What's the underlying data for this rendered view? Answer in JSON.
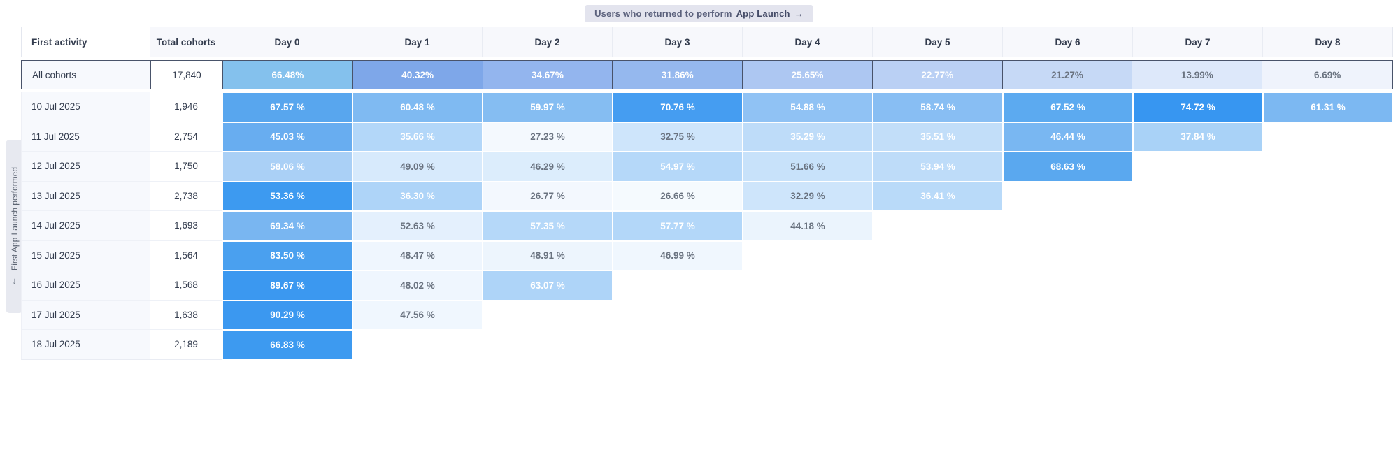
{
  "banner": {
    "prefix": "Users who returned to perform",
    "event": "App Launch",
    "arrow": "→"
  },
  "side_tab": {
    "label": "First App Launch performed",
    "arrow": "↓"
  },
  "palette": {
    "white_text": "#ffffff",
    "dark_text": "#6a7380",
    "summary_border": "#49536a"
  },
  "table": {
    "columns": [
      "First activity",
      "Total cohorts",
      "Day 0",
      "Day 1",
      "Day 2",
      "Day 3",
      "Day 4",
      "Day 5",
      "Day 6",
      "Day 7",
      "Day 8"
    ],
    "summary_row": {
      "label": "All cohorts",
      "total": "17,840",
      "cells": [
        {
          "value": "66.48%",
          "bg": "#84c1ed",
          "fg": "white"
        },
        {
          "value": "40.32%",
          "bg": "#7ea7e9",
          "fg": "white"
        },
        {
          "value": "34.67%",
          "bg": "#93b5ee",
          "fg": "white"
        },
        {
          "value": "31.86%",
          "bg": "#95b8ee",
          "fg": "white"
        },
        {
          "value": "25.65%",
          "bg": "#adc7f2",
          "fg": "white"
        },
        {
          "value": "22.77%",
          "bg": "#bad0f4",
          "fg": "white"
        },
        {
          "value": "21.27%",
          "bg": "#c6d9f6",
          "fg": "dark"
        },
        {
          "value": "13.99%",
          "bg": "#dde8fa",
          "fg": "dark"
        },
        {
          "value": "6.69%",
          "bg": "#eff3fc",
          "fg": "dark"
        }
      ]
    },
    "rows": [
      {
        "label": "10 Jul 2025",
        "total": "1,946",
        "cells": [
          {
            "value": "67.57 %",
            "bg": "#58a6ee",
            "fg": "white"
          },
          {
            "value": "60.48 %",
            "bg": "#7fbaf2",
            "fg": "white"
          },
          {
            "value": "59.97 %",
            "bg": "#85bdf2",
            "fg": "white"
          },
          {
            "value": "70.76 %",
            "bg": "#459df1",
            "fg": "white"
          },
          {
            "value": "54.88 %",
            "bg": "#90c2f4",
            "fg": "white"
          },
          {
            "value": "58.74 %",
            "bg": "#88bef3",
            "fg": "white"
          },
          {
            "value": "67.52 %",
            "bg": "#5caaf0",
            "fg": "white"
          },
          {
            "value": "74.72 %",
            "bg": "#3796f1",
            "fg": "white"
          },
          {
            "value": "61.31 %",
            "bg": "#7cb8f2",
            "fg": "white"
          }
        ]
      },
      {
        "label": "11 Jul 2025",
        "total": "2,754",
        "cells": [
          {
            "value": "45.03 %",
            "bg": "#68adf0",
            "fg": "white"
          },
          {
            "value": "35.66 %",
            "bg": "#b3d7f9",
            "fg": "white"
          },
          {
            "value": "27.23 %",
            "bg": "#f4f9fe",
            "fg": "dark"
          },
          {
            "value": "32.75 %",
            "bg": "#cee5fb",
            "fg": "dark"
          },
          {
            "value": "35.29 %",
            "bg": "#bedcf9",
            "fg": "white"
          },
          {
            "value": "35.51 %",
            "bg": "#c2def9",
            "fg": "white"
          },
          {
            "value": "46.44 %",
            "bg": "#79b7f2",
            "fg": "white"
          },
          {
            "value": "37.84 %",
            "bg": "#a9d2f7",
            "fg": "white"
          },
          null
        ]
      },
      {
        "label": "12 Jul 2025",
        "total": "1,750",
        "cells": [
          {
            "value": "58.06 %",
            "bg": "#aad0f6",
            "fg": "white"
          },
          {
            "value": "49.09 %",
            "bg": "#d7eafc",
            "fg": "dark"
          },
          {
            "value": "46.29 %",
            "bg": "#dcedfc",
            "fg": "dark"
          },
          {
            "value": "54.97 %",
            "bg": "#b5d8f9",
            "fg": "white"
          },
          {
            "value": "51.66 %",
            "bg": "#c8e2fa",
            "fg": "dark"
          },
          {
            "value": "53.94 %",
            "bg": "#bedcf9",
            "fg": "white"
          },
          {
            "value": "68.63 %",
            "bg": "#5aa8ef",
            "fg": "white"
          },
          null,
          null
        ]
      },
      {
        "label": "13 Jul 2025",
        "total": "2,738",
        "cells": [
          {
            "value": "53.36 %",
            "bg": "#3d9af0",
            "fg": "white"
          },
          {
            "value": "36.30 %",
            "bg": "#aed4f8",
            "fg": "white"
          },
          {
            "value": "26.77 %",
            "bg": "#f3f8fe",
            "fg": "dark"
          },
          {
            "value": "26.66 %",
            "bg": "#f5fafe",
            "fg": "dark"
          },
          {
            "value": "32.29 %",
            "bg": "#cee5fb",
            "fg": "dark"
          },
          {
            "value": "36.41 %",
            "bg": "#b9daf9",
            "fg": "white"
          },
          null,
          null,
          null
        ]
      },
      {
        "label": "14 Jul 2025",
        "total": "1,693",
        "cells": [
          {
            "value": "69.34 %",
            "bg": "#79b6f1",
            "fg": "white"
          },
          {
            "value": "52.63 %",
            "bg": "#e4f0fd",
            "fg": "dark"
          },
          {
            "value": "57.35 %",
            "bg": "#b5d8f9",
            "fg": "white"
          },
          {
            "value": "57.77 %",
            "bg": "#b3d7f9",
            "fg": "white"
          },
          {
            "value": "44.18 %",
            "bg": "#ebf4fd",
            "fg": "dark"
          },
          null,
          null,
          null,
          null
        ]
      },
      {
        "label": "15 Jul 2025",
        "total": "1,564",
        "cells": [
          {
            "value": "83.50 %",
            "bg": "#4aa0ef",
            "fg": "white"
          },
          {
            "value": "48.47 %",
            "bg": "#eff6fe",
            "fg": "dark"
          },
          {
            "value": "48.91 %",
            "bg": "#edf5fd",
            "fg": "dark"
          },
          {
            "value": "46.99 %",
            "bg": "#f0f7fe",
            "fg": "dark"
          },
          null,
          null,
          null,
          null,
          null
        ]
      },
      {
        "label": "16 Jul 2025",
        "total": "1,568",
        "cells": [
          {
            "value": "89.67 %",
            "bg": "#3b98f0",
            "fg": "white"
          },
          {
            "value": "48.02 %",
            "bg": "#eff6fe",
            "fg": "dark"
          },
          {
            "value": "63.07 %",
            "bg": "#aed4f8",
            "fg": "white"
          },
          null,
          null,
          null,
          null,
          null,
          null
        ]
      },
      {
        "label": "17 Jul 2025",
        "total": "1,638",
        "cells": [
          {
            "value": "90.29 %",
            "bg": "#3b98f0",
            "fg": "white"
          },
          {
            "value": "47.56 %",
            "bg": "#f0f7fe",
            "fg": "dark"
          },
          null,
          null,
          null,
          null,
          null,
          null,
          null
        ]
      },
      {
        "label": "18 Jul 2025",
        "total": "2,189",
        "cells": [
          {
            "value": "66.83 %",
            "bg": "#3d9af0",
            "fg": "white"
          },
          null,
          null,
          null,
          null,
          null,
          null,
          null,
          null
        ]
      }
    ]
  }
}
